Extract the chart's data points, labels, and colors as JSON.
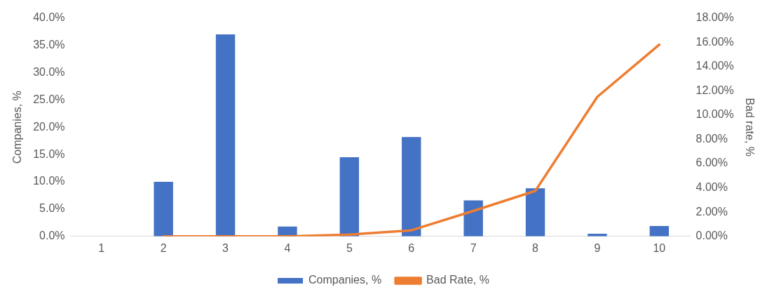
{
  "chart_data": {
    "type": "bar",
    "categories": [
      "1",
      "2",
      "3",
      "4",
      "5",
      "6",
      "7",
      "8",
      "9",
      "10"
    ],
    "ylabel": "Companies, %",
    "y2label": "Bad rate, %",
    "series": [
      {
        "name": "Companies, %",
        "color": "#4472c4",
        "values": [
          null,
          10.0,
          37.0,
          1.8,
          14.5,
          18.2,
          6.6,
          8.8,
          0.5,
          1.9
        ]
      },
      {
        "name": "Bad Rate, %",
        "type": "line",
        "axis": "y2",
        "color": "#ed7d31",
        "values": [
          null,
          0,
          0,
          0,
          0.15,
          0.5,
          2.1,
          3.75,
          11.5,
          15.8
        ]
      }
    ],
    "ylim": [
      0,
      40
    ],
    "yticks": [
      {
        "value": 0,
        "label": "0.0%"
      },
      {
        "value": 5,
        "label": "5.0%"
      },
      {
        "value": 10,
        "label": "10.0%"
      },
      {
        "value": 15,
        "label": "15.0%"
      },
      {
        "value": 20,
        "label": "20.0%"
      },
      {
        "value": 25,
        "label": "25.0%"
      },
      {
        "value": 30,
        "label": "30.0%"
      },
      {
        "value": 35,
        "label": "35.0%"
      },
      {
        "value": 40,
        "label": "40.0%"
      }
    ],
    "y2lim": [
      0,
      18
    ],
    "y2ticks": [
      {
        "value": 0,
        "label": "0.00%"
      },
      {
        "value": 2,
        "label": "2.00%"
      },
      {
        "value": 4,
        "label": "4.00%"
      },
      {
        "value": 6,
        "label": "6.00%"
      },
      {
        "value": 8,
        "label": "8.00%"
      },
      {
        "value": 10,
        "label": "10.00%"
      },
      {
        "value": 12,
        "label": "12.00%"
      },
      {
        "value": 14,
        "label": "14.00%"
      },
      {
        "value": 16,
        "label": "16.00%"
      },
      {
        "value": 18,
        "label": "18.00%"
      }
    ],
    "grid": false,
    "legend": "bottom",
    "marker": "none",
    "line_style": "solid"
  }
}
